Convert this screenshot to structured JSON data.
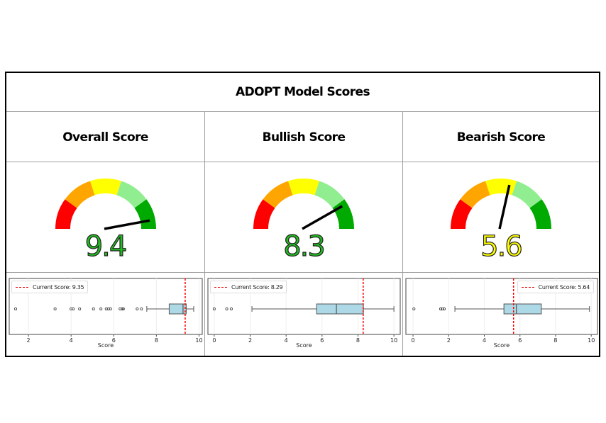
{
  "header": {
    "title": "ADOPT Model Scores"
  },
  "colors": {
    "red": "#ff0000",
    "orange": "#ffa500",
    "yellow": "#ffff00",
    "lightgreen": "#90ee90",
    "green": "#00aa00",
    "box_fill": "#add8e6",
    "current_line": "#ff0000"
  },
  "panels": [
    {
      "title": "Overall Score",
      "value_text": "9.4",
      "value": 9.4,
      "value_color": "#22bb22",
      "legend": "Current Score: 9.35"
    },
    {
      "title": "Bullish Score",
      "value_text": "8.3",
      "value": 8.3,
      "value_color": "#22bb22",
      "legend": "Current Score: 8.29"
    },
    {
      "title": "Bearish Score",
      "value_text": "5.6",
      "value": 5.6,
      "value_color": "#ffff00",
      "legend": "Current Score: 5.64"
    }
  ],
  "xlabel": "Score",
  "chart_data": [
    {
      "type": "gauge",
      "title": "Overall Score",
      "value": 9.4,
      "range": [
        0,
        10
      ],
      "bands": [
        {
          "from": 0,
          "to": 2,
          "color": "#ff0000"
        },
        {
          "from": 2,
          "to": 4,
          "color": "#ffa500"
        },
        {
          "from": 4,
          "to": 6,
          "color": "#ffff00"
        },
        {
          "from": 6,
          "to": 8,
          "color": "#90ee90"
        },
        {
          "from": 8,
          "to": 10,
          "color": "#00aa00"
        }
      ]
    },
    {
      "type": "gauge",
      "title": "Bullish Score",
      "value": 8.3,
      "range": [
        0,
        10
      ]
    },
    {
      "type": "gauge",
      "title": "Bearish Score",
      "value": 5.6,
      "range": [
        0,
        10
      ]
    },
    {
      "type": "boxplot",
      "title": "Overall Score distribution",
      "xlabel": "Score",
      "xlim": [
        1.1,
        10.15
      ],
      "xticks": [
        2,
        4,
        6,
        8,
        10
      ],
      "whisker_low": 7.55,
      "q1": 8.6,
      "median": 9.25,
      "q3": 9.4,
      "whisker_high": 9.75,
      "outliers": [
        1.4,
        3.25,
        4.0,
        4.1,
        4.4,
        5.05,
        5.4,
        5.65,
        5.75,
        5.85,
        6.3,
        6.4,
        6.45,
        7.1,
        7.3
      ],
      "current_score": 9.35,
      "legend": [
        "Current Score: 9.35"
      ],
      "legend_position": "upper left"
    },
    {
      "type": "boxplot",
      "title": "Bullish Score distribution",
      "xlabel": "Score",
      "xlim": [
        -0.35,
        10.35
      ],
      "xticks": [
        0,
        2,
        4,
        6,
        8,
        10
      ],
      "whisker_low": 2.1,
      "q1": 5.7,
      "median": 6.8,
      "q3": 8.3,
      "whisker_high": 10.0,
      "outliers": [
        0.0,
        0.7,
        0.95
      ],
      "current_score": 8.29,
      "legend": [
        "Current Score: 8.29"
      ],
      "legend_position": "upper left"
    },
    {
      "type": "boxplot",
      "title": "Bearish Score distribution",
      "xlabel": "Score",
      "xlim": [
        -0.4,
        10.35
      ],
      "xticks": [
        0,
        2,
        4,
        6,
        8,
        10
      ],
      "whisker_low": 2.35,
      "q1": 5.1,
      "median": 5.8,
      "q3": 7.2,
      "whisker_high": 9.9,
      "outliers": [
        0.05,
        1.55,
        1.65,
        1.75
      ],
      "current_score": 5.64,
      "legend": [
        "Current Score: 5.64"
      ],
      "legend_position": "upper right"
    }
  ]
}
